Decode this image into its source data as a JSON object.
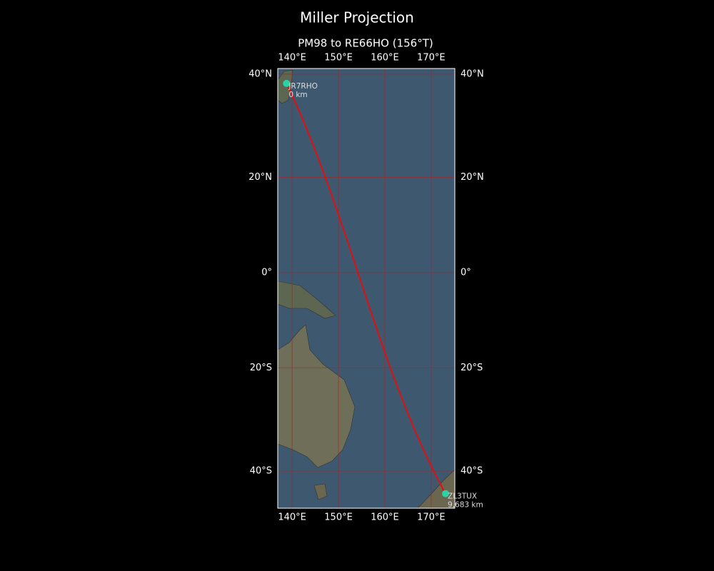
{
  "map": {
    "title": "Miller Projection",
    "subtitle": "PM98 to RE66HO (156°T)",
    "projection": "miller",
    "xlim": [
      136.9,
      175.1
    ],
    "ylim": [
      -46.5,
      41.0
    ],
    "xticks": [
      {
        "value": 140,
        "label": "140°E"
      },
      {
        "value": 150,
        "label": "150°E"
      },
      {
        "value": 160,
        "label": "160°E"
      },
      {
        "value": 170,
        "label": "170°E"
      }
    ],
    "yticks": [
      {
        "value": 40,
        "label": "40°N"
      },
      {
        "value": 20,
        "label": "20°N"
      },
      {
        "value": 0,
        "label": "0°"
      },
      {
        "value": -20,
        "label": "20°S"
      },
      {
        "value": -40,
        "label": "40°S"
      }
    ],
    "grid_color": "#b22222",
    "path_color": "#e01010",
    "station_color": "#2ad3a6",
    "stations": [
      {
        "name": "JR7RHO",
        "lon": 138.8,
        "lat": 38.3,
        "distance": 0,
        "distance_label": "0 km"
      },
      {
        "name": "ZL3TUX",
        "lon": 173.1,
        "lat": -44.0,
        "distance": 9683,
        "distance_label": "9,683 km"
      }
    ]
  }
}
